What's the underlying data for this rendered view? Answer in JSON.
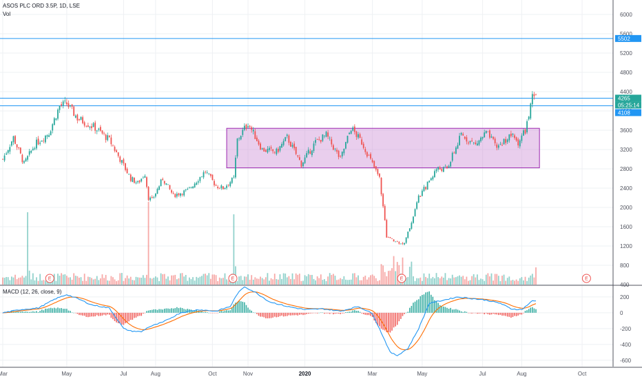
{
  "legend": {
    "symbol": "ASOS PLC ORD 3.5P, 1D, LSE",
    "volume": "Vol",
    "macd": "MACD (12, 26, close, 9)"
  },
  "colors": {
    "up": "#26a69a",
    "down": "#ef5350",
    "level_line": "#2196f3",
    "range_box_fill": "#ce93d8",
    "range_box_stroke": "#9c27b0",
    "macd_line": "#2196f3",
    "signal_line": "#ff6d00",
    "last_price_badge": "#26a69a",
    "level_badge": "#2196f3"
  },
  "chart_data": {
    "type": "candlestick",
    "x_ticks": [
      "Mar",
      "May",
      "Jul",
      "Aug",
      "Oct",
      "Nov",
      "2020",
      "Mar",
      "May",
      "Jul",
      "Aug",
      "Oct"
    ],
    "price_axis": {
      "ticks": [
        "6000",
        "5600",
        "5200",
        "4800",
        "4400",
        "4000",
        "3600",
        "3200",
        "2800",
        "2400",
        "2000",
        "1600",
        "1200",
        "800",
        "400"
      ],
      "range": [
        400,
        6300
      ]
    },
    "macd_axis": {
      "ticks": [
        "200",
        "0",
        "-200",
        "-400",
        "-600"
      ],
      "range": [
        -680,
        330
      ]
    },
    "price_labels": [
      {
        "value": 5502,
        "text": "5502",
        "kind": "level"
      },
      {
        "value": 4265,
        "text": "4265",
        "kind": "last"
      },
      {
        "value": 4265,
        "text": "05:25:14",
        "kind": "countdown"
      },
      {
        "value": 4108,
        "text": "4108",
        "kind": "level"
      }
    ],
    "horizontal_levels": [
      5502,
      4265,
      4108
    ],
    "range_box": {
      "from_index": 126,
      "to_index": 302,
      "high": 3640,
      "low": 2820
    },
    "earnings_markers": [
      {
        "index": 28,
        "label": "E"
      },
      {
        "index": 131,
        "label": "E"
      },
      {
        "index": 226,
        "label": "E"
      },
      {
        "index": 330,
        "label": "E"
      }
    ],
    "close_anchors": [
      [
        0,
        3000
      ],
      [
        6,
        3450
      ],
      [
        12,
        2900
      ],
      [
        18,
        3300
      ],
      [
        26,
        3550
      ],
      [
        32,
        4100
      ],
      [
        36,
        4150
      ],
      [
        42,
        3850
      ],
      [
        52,
        3650
      ],
      [
        60,
        3400
      ],
      [
        66,
        3000
      ],
      [
        72,
        2600
      ],
      [
        76,
        2500
      ],
      [
        80,
        2700
      ],
      [
        82,
        2200
      ],
      [
        84,
        2150
      ],
      [
        90,
        2600
      ],
      [
        96,
        2250
      ],
      [
        104,
        2350
      ],
      [
        114,
        2750
      ],
      [
        120,
        2450
      ],
      [
        124,
        2400
      ],
      [
        130,
        2600
      ],
      [
        132,
        3400
      ],
      [
        138,
        3750
      ],
      [
        146,
        3200
      ],
      [
        154,
        3150
      ],
      [
        160,
        3450
      ],
      [
        168,
        2900
      ],
      [
        176,
        3350
      ],
      [
        182,
        3500
      ],
      [
        190,
        3000
      ],
      [
        196,
        3650
      ],
      [
        202,
        3350
      ],
      [
        208,
        2900
      ],
      [
        212,
        2600
      ],
      [
        216,
        1400
      ],
      [
        220,
        1300
      ],
      [
        226,
        1250
      ],
      [
        230,
        1700
      ],
      [
        234,
        2200
      ],
      [
        240,
        2550
      ],
      [
        244,
        2800
      ],
      [
        250,
        2800
      ],
      [
        258,
        3500
      ],
      [
        266,
        3300
      ],
      [
        272,
        3550
      ],
      [
        278,
        3250
      ],
      [
        286,
        3500
      ],
      [
        290,
        3350
      ],
      [
        294,
        3600
      ],
      [
        296,
        3900
      ],
      [
        298,
        4265
      ]
    ],
    "volume_spikes": [
      [
        14,
        1050
      ],
      [
        82,
        1200
      ],
      [
        130,
        1020
      ],
      [
        214,
        1120
      ],
      [
        224,
        1250
      ],
      [
        300,
        250
      ]
    ],
    "macd_anchors": [
      [
        0,
        0
      ],
      [
        10,
        40
      ],
      [
        20,
        60
      ],
      [
        30,
        180
      ],
      [
        36,
        230
      ],
      [
        42,
        180
      ],
      [
        50,
        100
      ],
      [
        60,
        60
      ],
      [
        68,
        -200
      ],
      [
        72,
        -230
      ],
      [
        78,
        -240
      ],
      [
        82,
        -180
      ],
      [
        90,
        -120
      ],
      [
        100,
        0
      ],
      [
        110,
        40
      ],
      [
        120,
        20
      ],
      [
        128,
        80
      ],
      [
        132,
        240
      ],
      [
        136,
        330
      ],
      [
        142,
        260
      ],
      [
        150,
        140
      ],
      [
        160,
        80
      ],
      [
        170,
        40
      ],
      [
        180,
        50
      ],
      [
        190,
        20
      ],
      [
        200,
        80
      ],
      [
        208,
        -10
      ],
      [
        214,
        -300
      ],
      [
        218,
        -500
      ],
      [
        222,
        -540
      ],
      [
        228,
        -450
      ],
      [
        234,
        -200
      ],
      [
        240,
        120
      ],
      [
        248,
        160
      ],
      [
        256,
        200
      ],
      [
        264,
        180
      ],
      [
        272,
        160
      ],
      [
        280,
        120
      ],
      [
        286,
        50
      ],
      [
        292,
        40
      ],
      [
        298,
        150
      ]
    ]
  }
}
